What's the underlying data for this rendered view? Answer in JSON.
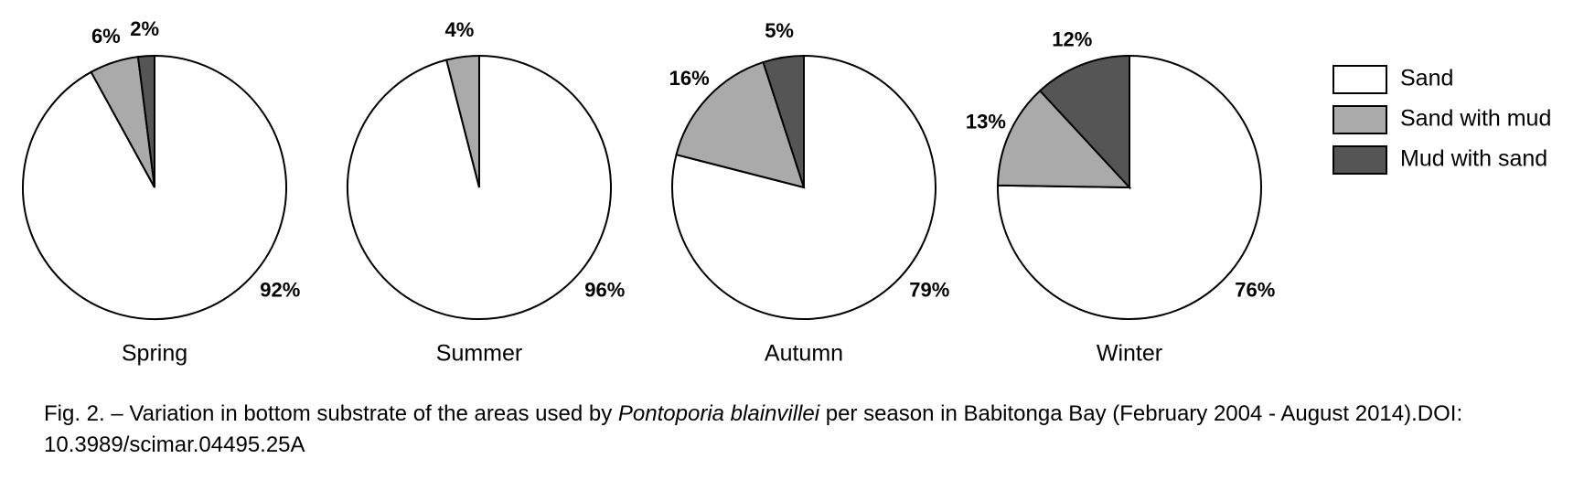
{
  "chart_data": {
    "type": "pie",
    "categories": [
      "Sand",
      "Sand with mud",
      "Mud with sand"
    ],
    "colors": [
      "#ffffff",
      "#aaaaaa",
      "#555555"
    ],
    "pies": [
      {
        "name": "Spring",
        "values": [
          92,
          6,
          2
        ],
        "value_labels": [
          "92%",
          "6%",
          "2%"
        ]
      },
      {
        "name": "Summer",
        "values": [
          96,
          4,
          null
        ],
        "value_labels": [
          "96%",
          "4%",
          null
        ]
      },
      {
        "name": "Autumn",
        "values": [
          79,
          16,
          5
        ],
        "value_labels": [
          "79%",
          "16%",
          "5%"
        ]
      },
      {
        "name": "Winter",
        "values": [
          76,
          13,
          12
        ],
        "value_labels": [
          "76%",
          "13%",
          "12%"
        ]
      }
    ]
  },
  "caption": {
    "before": "Fig. 2. – Variation in bottom substrate of the areas used by ",
    "italic": "Pontoporia blainvillei",
    "after": " per season in Babitonga Bay (February 2004 - August 2014).DOI: 10.3989/scimar.04495.25A"
  }
}
